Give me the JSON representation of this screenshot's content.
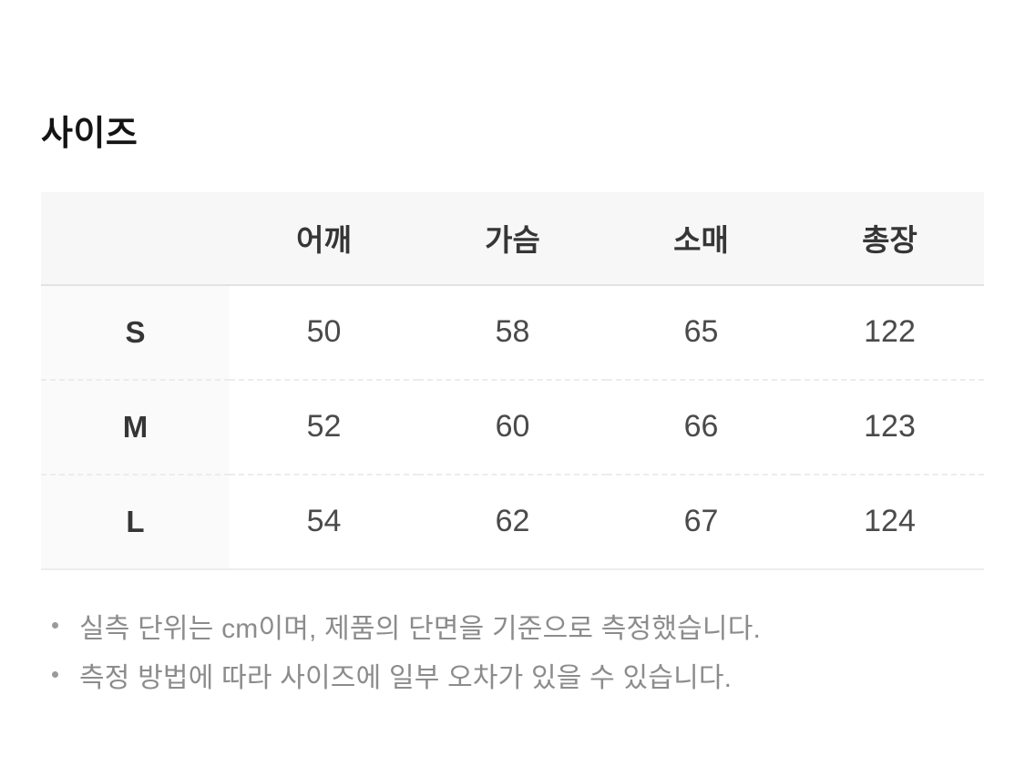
{
  "section": {
    "title": "사이즈"
  },
  "size_table": {
    "columns": [
      "어깨",
      "가슴",
      "소매",
      "총장"
    ],
    "rows": [
      {
        "size": "S",
        "values": [
          50,
          58,
          65,
          122
        ]
      },
      {
        "size": "M",
        "values": [
          52,
          60,
          66,
          123
        ]
      },
      {
        "size": "L",
        "values": [
          54,
          62,
          67,
          124
        ]
      }
    ]
  },
  "notes": [
    "실측 단위는 cm이며, 제품의 단면을 기준으로 측정했습니다.",
    "측정 방법에 따라 사이즈에 일부 오차가 있을 수 있습니다."
  ],
  "colors": {
    "header_bg": "#f7f7f7",
    "row_label_bg": "#fafafa",
    "solid_border": "#e2e2e2",
    "dashed_border": "#ececec",
    "title_text": "#141414",
    "cell_text": "#4a4a4a",
    "note_text": "#8c8c8c"
  }
}
